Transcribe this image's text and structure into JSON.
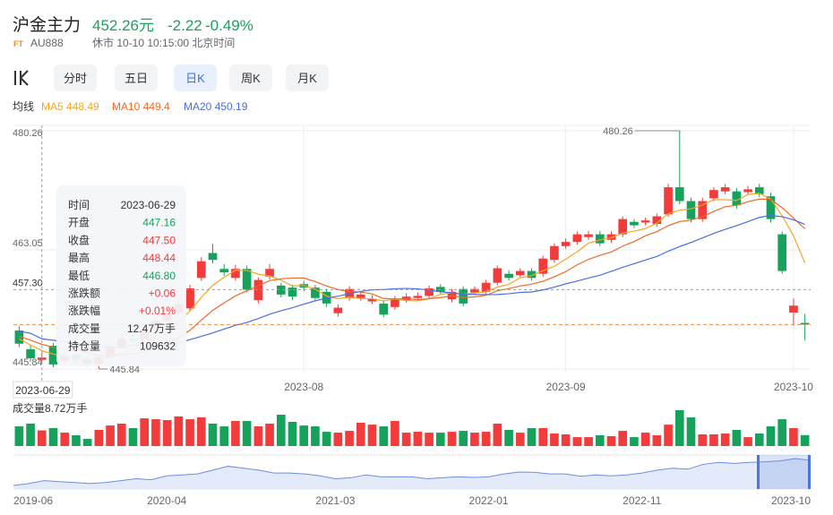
{
  "header": {
    "title": "沪金主力",
    "price": "452.26元",
    "change": "-2.22",
    "change_pct": "-0.49%",
    "badge": "FT",
    "code": "AU888",
    "status": "休市 10-10 10:15:00 北京时间"
  },
  "tabs": {
    "items": [
      "分时",
      "五日",
      "日K",
      "周K",
      "月K"
    ],
    "active": "日K"
  },
  "tooltip": {
    "rows": [
      {
        "label": "时间",
        "value": "2023-06-29",
        "color": "#333333"
      },
      {
        "label": "开盘",
        "value": "447.16",
        "color": "#17a25c"
      },
      {
        "label": "收盘",
        "value": "447.50",
        "color": "#f23c3c"
      },
      {
        "label": "最高",
        "value": "448.44",
        "color": "#f23c3c"
      },
      {
        "label": "最低",
        "value": "446.80",
        "color": "#17a25c"
      },
      {
        "label": "涨跌额",
        "value": "+0.06",
        "color": "#f23c3c"
      },
      {
        "label": "涨跌幅",
        "value": "+0.01%",
        "color": "#f23c3c"
      },
      {
        "label": "成交量",
        "value": "12.47万手",
        "color": "#333333"
      },
      {
        "label": "持仓量",
        "value": "109632",
        "color": "#333333"
      }
    ]
  },
  "chart_data": [
    {
      "type": "candlestick",
      "legend_title": "均线",
      "up_color": "#f23c3c",
      "down_color": "#17a25c",
      "grid": true,
      "categories": [
        null,
        null,
        "2023-06-29",
        null,
        null,
        null,
        null,
        null,
        null,
        null,
        null,
        null,
        null,
        null,
        null,
        null,
        null,
        null,
        null,
        null,
        null,
        null,
        null,
        null,
        null,
        "2023-08",
        null,
        null,
        null,
        null,
        null,
        null,
        null,
        null,
        null,
        null,
        null,
        null,
        null,
        null,
        null,
        null,
        null,
        null,
        null,
        null,
        null,
        null,
        "2023-09",
        null,
        null,
        null,
        null,
        null,
        null,
        null,
        null,
        null,
        null,
        null,
        null,
        null,
        null,
        null,
        null,
        null,
        null,
        null,
        "2023-10",
        null
      ],
      "open": [
        451.4,
        448.7,
        447.16,
        449.2,
        447.0,
        447.9,
        447.3,
        446.6,
        447.6,
        449.0,
        450.2,
        450.1,
        451.4,
        452.8,
        453.9,
        454.6,
        459.0,
        462.6,
        460.3,
        459.0,
        460.3,
        455.8,
        459.2,
        457.9,
        457.6,
        458.1,
        457.6,
        457.0,
        453.9,
        456.1,
        456.1,
        455.6,
        455.3,
        454.8,
        455.8,
        456.1,
        456.4,
        457.7,
        455.9,
        457.4,
        456.9,
        457.0,
        458.3,
        459.6,
        459.4,
        460.0,
        459.6,
        461.6,
        463.6,
        464.2,
        464.9,
        465.3,
        464.5,
        465.3,
        467.1,
        467.0,
        466.8,
        468.2,
        472.1,
        470.1,
        467.5,
        470.5,
        471.5,
        471.5,
        471.4,
        472.1,
        470.8,
        465.3,
        454.0,
        452.5
      ],
      "high": [
        452.0,
        449.3,
        448.44,
        449.6,
        448.3,
        448.3,
        447.8,
        447.9,
        449.4,
        450.7,
        450.8,
        451.9,
        453.2,
        454.5,
        455.7,
        458.0,
        462.0,
        463.9,
        461.0,
        460.9,
        460.8,
        459.1,
        461.0,
        458.3,
        458.0,
        458.6,
        458.0,
        457.4,
        455.2,
        457.8,
        457.0,
        456.5,
        455.7,
        456.4,
        456.8,
        456.9,
        457.9,
        458.1,
        457.4,
        457.8,
        457.8,
        458.7,
        460.8,
        460.1,
        460.4,
        460.4,
        462.2,
        464.0,
        464.7,
        465.7,
        465.8,
        465.8,
        465.7,
        467.9,
        467.5,
        467.7,
        468.3,
        472.6,
        480.26,
        470.6,
        470.6,
        472.1,
        472.6,
        472.0,
        472.3,
        472.6,
        471.3,
        465.7,
        456.0,
        453.8
      ],
      "low": [
        449.0,
        446.9,
        446.8,
        446.1,
        446.7,
        446.8,
        446.2,
        445.84,
        447.3,
        448.7,
        449.6,
        449.8,
        451.0,
        452.4,
        453.5,
        454.2,
        458.6,
        461.1,
        459.3,
        458.6,
        456.9,
        455.3,
        458.8,
        456.2,
        455.8,
        457.1,
        455.7,
        454.8,
        453.4,
        455.7,
        455.7,
        455.2,
        453.3,
        454.4,
        455.4,
        455.7,
        456.0,
        456.6,
        455.5,
        454.9,
        456.5,
        456.6,
        457.9,
        458.6,
        459.0,
        458.6,
        459.2,
        461.2,
        463.2,
        463.8,
        464.5,
        463.6,
        464.1,
        464.9,
        466.2,
        466.6,
        466.4,
        467.8,
        469.6,
        467.0,
        467.1,
        470.1,
        471.1,
        469.0,
        471.0,
        470.7,
        467.0,
        459.6,
        452.1,
        450.0
      ],
      "close": [
        449.5,
        447.4,
        447.5,
        446.5,
        447.8,
        447.2,
        446.6,
        447.5,
        449.0,
        450.2,
        450.0,
        451.5,
        452.8,
        454.0,
        455.2,
        457.5,
        461.4,
        461.6,
        459.8,
        460.3,
        457.3,
        458.7,
        460.3,
        456.6,
        456.3,
        457.6,
        456.1,
        455.3,
        454.7,
        457.4,
        456.6,
        456.0,
        453.7,
        456.0,
        456.3,
        456.4,
        457.5,
        457.0,
        457.0,
        455.3,
        457.4,
        458.3,
        460.4,
        459.0,
        460.0,
        459.0,
        461.8,
        463.6,
        464.2,
        465.3,
        465.3,
        464.0,
        465.3,
        467.5,
        466.6,
        467.3,
        467.9,
        472.1,
        470.1,
        467.5,
        470.1,
        471.7,
        472.1,
        469.5,
        471.8,
        471.1,
        467.5,
        460.0,
        455.0,
        452.26
      ],
      "series": [
        {
          "name": "MA5",
          "color": "#f5a623",
          "values": [
            450.2,
            449.3,
            448.49,
            448.0,
            447.7,
            447.3,
            447.1,
            447.1,
            447.6,
            448.1,
            448.66,
            449.64,
            450.7,
            451.7,
            452.7,
            454.2,
            456.18,
            457.94,
            459.1,
            460.12,
            460.08,
            459.54,
            459.28,
            458.64,
            457.84,
            457.9,
            457.38,
            456.38,
            456.0,
            456.22,
            456.02,
            456.0,
            455.68,
            455.94,
            455.72,
            455.68,
            455.98,
            456.64,
            456.84,
            456.64,
            456.84,
            457.0,
            457.68,
            458.08,
            459.02,
            459.34,
            460.04,
            460.68,
            461.72,
            462.78,
            464.04,
            464.48,
            464.82,
            465.48,
            465.74,
            466.14,
            466.92,
            468.28,
            468.8,
            468.98,
            469.54,
            470.3,
            470.3,
            470.18,
            471.04,
            471.24,
            470.4,
            467.98,
            465.08,
            461.17
          ]
        },
        {
          "name": "MA10",
          "color": "#f06a28",
          "values": [
            450.6,
            450.0,
            449.4,
            449.0,
            448.8,
            448.75,
            448.2,
            447.8,
            447.8,
            447.9,
            447.98,
            448.37,
            448.9,
            449.65,
            450.4,
            451.43,
            452.91,
            454.32,
            455.4,
            456.41,
            457.14,
            457.86,
            458.61,
            458.87,
            458.98,
            458.99,
            458.46,
            457.83,
            457.32,
            457.03,
            456.96,
            456.69,
            456.03,
            455.97,
            455.97,
            455.85,
            455.99,
            456.16,
            456.39,
            456.18,
            456.26,
            456.49,
            457.16,
            457.46,
            457.83,
            458.09,
            458.52,
            459.18,
            459.9,
            460.9,
            461.69,
            462.26,
            462.75,
            463.6,
            464.26,
            465.09,
            465.7,
            466.55,
            467.14,
            467.36,
            467.84,
            468.61,
            469.29,
            469.49,
            470.01,
            470.39,
            470.35,
            469.14,
            467.63,
            466.1
          ]
        },
        {
          "name": "MA20",
          "color": "#4b6fde",
          "values": [
            451.3,
            451.0,
            450.19,
            450.0,
            449.8,
            449.6,
            449.4,
            449.2,
            449.0,
            448.9,
            449.29,
            449.19,
            449.15,
            449.33,
            449.6,
            450.09,
            450.56,
            451.06,
            451.6,
            452.16,
            452.56,
            453.12,
            453.76,
            454.26,
            454.69,
            455.21,
            455.69,
            456.08,
            456.36,
            456.72,
            457.05,
            457.28,
            457.32,
            457.42,
            457.48,
            457.42,
            457.23,
            457.0,
            456.86,
            456.61,
            456.61,
            456.59,
            456.6,
            456.72,
            456.9,
            456.97,
            457.26,
            457.67,
            458.15,
            458.54,
            458.98,
            459.38,
            459.96,
            460.53,
            461.05,
            461.59,
            462.11,
            462.87,
            463.52,
            464.13,
            464.77,
            465.44,
            466.02,
            466.55,
            467.14,
            467.74,
            468.03,
            467.85,
            467.39,
            466.73
          ]
        }
      ],
      "ylim": [
        445.84,
        480.26
      ],
      "yticks": [
        445.84,
        463.05,
        480.26
      ],
      "crosshair": {
        "y": {
          "value": 457.3,
          "label": "457.30"
        },
        "color": "#999999"
      },
      "last_line_color": "#f58c3c"
    },
    {
      "type": "bar",
      "title": "成交量8.72万手",
      "values": [
        15.7,
        17.9,
        12.47,
        14.3,
        10.7,
        8.6,
        5.7,
        12.9,
        16.4,
        17.9,
        14.3,
        22.1,
        21.4,
        20.7,
        23.6,
        21.4,
        22.9,
        17.9,
        15.7,
        20.0,
        20.0,
        15.7,
        17.9,
        25.0,
        19.3,
        16.4,
        15.7,
        11.4,
        10.7,
        12.1,
        18.6,
        17.1,
        15.7,
        20.0,
        10.7,
        11.4,
        10.7,
        10.7,
        11.4,
        12.1,
        10.7,
        11.4,
        17.9,
        12.9,
        10.7,
        14.3,
        14.3,
        10.0,
        9.3,
        7.1,
        7.1,
        8.6,
        7.9,
        12.1,
        7.1,
        10.7,
        8.6,
        17.1,
        28.6,
        22.9,
        9.3,
        9.3,
        10.0,
        12.9,
        7.1,
        10.0,
        15.7,
        21.4,
        14.3,
        8.72
      ]
    },
    {
      "type": "area",
      "color": "#6d8fe0",
      "categories": [
        "2019-06",
        null,
        null,
        null,
        null,
        null,
        null,
        null,
        null,
        null,
        "2020-04",
        null,
        null,
        null,
        null,
        null,
        null,
        null,
        null,
        null,
        null,
        "2021-03",
        null,
        null,
        null,
        null,
        null,
        null,
        null,
        null,
        null,
        "2022-01",
        null,
        null,
        null,
        null,
        null,
        null,
        null,
        null,
        null,
        "2022-11",
        null,
        null,
        null,
        null,
        null,
        null,
        null,
        null,
        null,
        null,
        "2023-10"
      ],
      "values": [
        330,
        340,
        355,
        350,
        345,
        340,
        345,
        355,
        365,
        360,
        380,
        385,
        390,
        410,
        430,
        420,
        410,
        395,
        395,
        390,
        380,
        365,
        370,
        385,
        375,
        375,
        375,
        365,
        370,
        375,
        372,
        375,
        390,
        400,
        398,
        390,
        390,
        378,
        385,
        380,
        385,
        395,
        410,
        420,
        415,
        440,
        450,
        445,
        450,
        453,
        458,
        470,
        460
      ]
    }
  ]
}
